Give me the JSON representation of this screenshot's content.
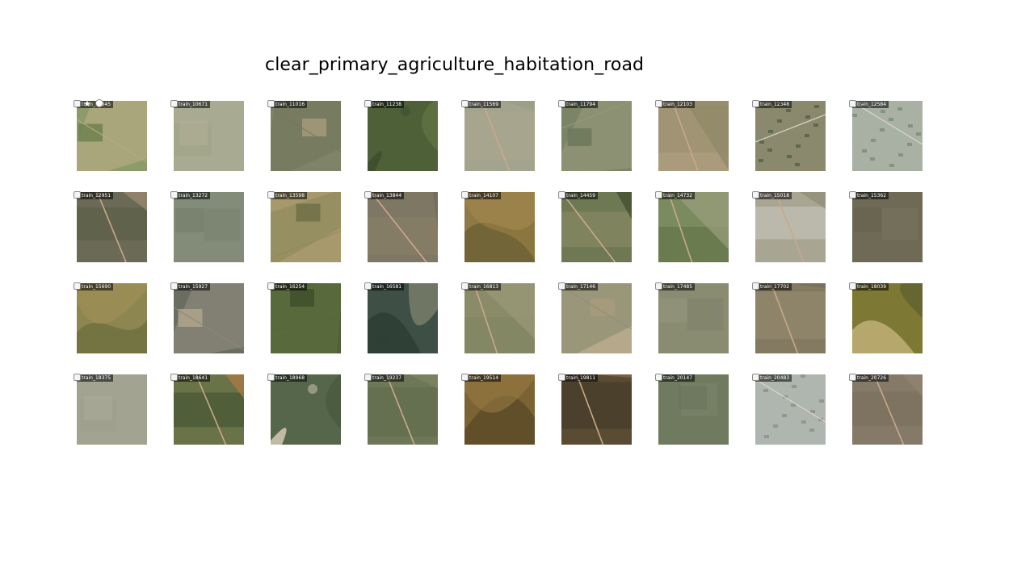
{
  "page": {
    "title": "clear_primary_agriculture_habitation_road"
  },
  "tiles": [
    {
      "label": "train_10345",
      "palette": [
        "#8d9a6a",
        "#b7ab83",
        "#6c7f4d"
      ],
      "pattern": "fields"
    },
    {
      "label": "train_10671",
      "palette": [
        "#a8aa91",
        "#9ca283",
        "#b8b59c"
      ],
      "pattern": "haze"
    },
    {
      "label": "train_11016",
      "palette": [
        "#7f8468",
        "#74795c",
        "#a79b7c"
      ],
      "pattern": "fields"
    },
    {
      "label": "train_11238",
      "palette": [
        "#4d6038",
        "#5f7344",
        "#3e5030"
      ],
      "pattern": "forest"
    },
    {
      "label": "train_11569",
      "palette": [
        "#a3a48e",
        "#aba790",
        "#9a9b83"
      ],
      "pattern": "road"
    },
    {
      "label": "train_11794",
      "palette": [
        "#7b8566",
        "#96967b",
        "#6a775a"
      ],
      "pattern": "fields"
    },
    {
      "label": "train_12103",
      "palette": [
        "#a99b7b",
        "#9b8f70",
        "#8f8767"
      ],
      "pattern": "road"
    },
    {
      "label": "train_12348",
      "palette": [
        "#6f7152",
        "#a5a187",
        "#53623f"
      ],
      "pattern": "town"
    },
    {
      "label": "train_12584",
      "palette": [
        "#b9bcb3",
        "#99a396",
        "#7c8b74"
      ],
      "pattern": "town"
    },
    {
      "label": "train_12951",
      "palette": [
        "#6b6a56",
        "#585d45",
        "#9e8b74"
      ],
      "pattern": "road"
    },
    {
      "label": "train_13272",
      "palette": [
        "#828c78",
        "#77806d",
        "#6c7663"
      ],
      "pattern": "haze"
    },
    {
      "label": "train_13598",
      "palette": [
        "#a8996c",
        "#8e8a5c",
        "#6d6d45"
      ],
      "pattern": "fields"
    },
    {
      "label": "train_13844",
      "palette": [
        "#7e7764",
        "#8a8068",
        "#706b58"
      ],
      "pattern": "road"
    },
    {
      "label": "train_14107",
      "palette": [
        "#8c7640",
        "#6b6135",
        "#a88d52"
      ],
      "pattern": "hills"
    },
    {
      "label": "train_14459",
      "palette": [
        "#6e7852",
        "#8a8c68",
        "#3d4c2e"
      ],
      "pattern": "road"
    },
    {
      "label": "train_14732",
      "palette": [
        "#7b8b60",
        "#5f7246",
        "#9aa07c"
      ],
      "pattern": "road"
    },
    {
      "label": "train_15018",
      "palette": [
        "#a8a593",
        "#c8c7bb",
        "#8f8b76"
      ],
      "pattern": "road"
    },
    {
      "label": "train_15362",
      "palette": [
        "#6e6a56",
        "#787460",
        "#62604c"
      ],
      "pattern": "haze"
    },
    {
      "label": "train_15690",
      "palette": [
        "#8e8248",
        "#6d7040",
        "#a3955e"
      ],
      "pattern": "hills"
    },
    {
      "label": "train_15927",
      "palette": [
        "#6a6e60",
        "#8b887a",
        "#b3a68f"
      ],
      "pattern": "fields"
    },
    {
      "label": "train_16254",
      "palette": [
        "#4e6034",
        "#5c6e3e",
        "#3e4e2a"
      ],
      "pattern": "fields"
    },
    {
      "label": "train_16581",
      "palette": [
        "#3e5046",
        "#7c806c",
        "#2f4036"
      ],
      "pattern": "forest"
    },
    {
      "label": "train_16813",
      "palette": [
        "#8a8c68",
        "#7f8460",
        "#9a9878"
      ],
      "pattern": "road"
    },
    {
      "label": "train_17146",
      "palette": [
        "#b5a98a",
        "#8e8f74",
        "#a79b7c"
      ],
      "pattern": "fields"
    },
    {
      "label": "train_17485",
      "palette": [
        "#8a8c72",
        "#7c8066",
        "#979981"
      ],
      "pattern": "haze"
    },
    {
      "label": "train_17702",
      "palette": [
        "#847a62",
        "#948a6e",
        "#756d58"
      ],
      "pattern": "road"
    },
    {
      "label": "train_18039",
      "palette": [
        "#7d7833",
        "#5f6230",
        "#b6a76d"
      ],
      "pattern": "forest"
    },
    {
      "label": "train_18375",
      "palette": [
        "#a3a392",
        "#9ca08a",
        "#b0ae9c"
      ],
      "pattern": "haze"
    },
    {
      "label": "train_18641",
      "palette": [
        "#6a7248",
        "#3f5230",
        "#b07a46"
      ],
      "pattern": "road"
    },
    {
      "label": "train_18968",
      "palette": [
        "#56664a",
        "#485a3e",
        "#c2bba3"
      ],
      "pattern": "forest"
    },
    {
      "label": "train_19237",
      "palette": [
        "#6e7858",
        "#5f6a4c",
        "#7d8463"
      ],
      "pattern": "road"
    },
    {
      "label": "train_19514",
      "palette": [
        "#7b6334",
        "#5a4a25",
        "#9c7e45"
      ],
      "pattern": "hills"
    },
    {
      "label": "train_19811",
      "palette": [
        "#5a4c33",
        "#3f3828",
        "#8a6a4c"
      ],
      "pattern": "road"
    },
    {
      "label": "train_20147",
      "palette": [
        "#6f7a5f",
        "#7d866a",
        "#65705a"
      ],
      "pattern": "haze"
    },
    {
      "label": "train_20483",
      "palette": [
        "#b9bdb8",
        "#a6ada5",
        "#8f8f86"
      ],
      "pattern": "town"
    },
    {
      "label": "train_20726",
      "palette": [
        "#857a68",
        "#786e5c",
        "#918672"
      ],
      "pattern": "road"
    }
  ]
}
